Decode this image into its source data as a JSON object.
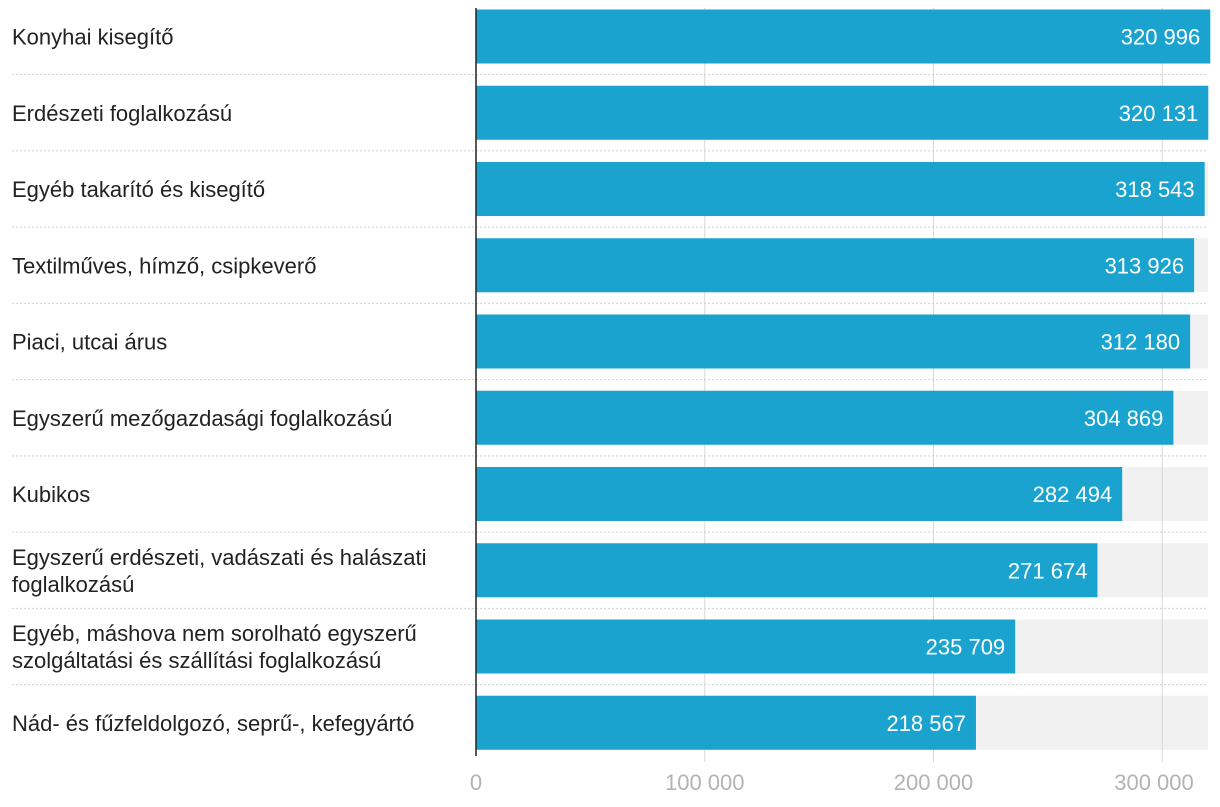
{
  "chart_data": {
    "type": "bar",
    "orientation": "horizontal",
    "title": "",
    "xlabel": "",
    "ylabel": "",
    "xlim": [
      0,
      320000
    ],
    "grid": true,
    "ticks": [
      {
        "value": 0,
        "label": "0"
      },
      {
        "value": 100000,
        "label": "100 000"
      },
      {
        "value": 200000,
        "label": "200 000"
      },
      {
        "value": 300000,
        "label": "300 000"
      }
    ],
    "categories": [
      [
        "Konyhai kisegítő"
      ],
      [
        "Erdészeti foglalkozású"
      ],
      [
        "Egyéb takarító és kisegítő"
      ],
      [
        "Textilműves, hímző, csipkeverő"
      ],
      [
        "Piaci, utcai árus"
      ],
      [
        "Egyszerű mezőgazdasági foglalkozású"
      ],
      [
        "Kubikos"
      ],
      [
        "Egyszerű erdészeti, vadászati és halászati",
        "foglalkozású"
      ],
      [
        "Egyéb, máshova nem sorolható egyszerű",
        "szolgáltatási és szállítási foglalkozású"
      ],
      [
        "Nád- és fűzfeldolgozó, seprű-, kefegyártó"
      ]
    ],
    "values": [
      320996,
      320131,
      318543,
      313926,
      312180,
      304869,
      282494,
      271674,
      235709,
      218567
    ],
    "value_labels": [
      "320 996",
      "320 131",
      "318 543",
      "313 926",
      "312 180",
      "304 869",
      "282 494",
      "271 674",
      "235 709",
      "218 567"
    ],
    "colors": {
      "bar": "#1ba3d0",
      "track": "#f1f1f1",
      "grid": "#d8d8d8",
      "axis": "#222222",
      "label_text": "#222222",
      "value_text": "#ffffff",
      "tick_text": "#b3b3b3",
      "separator": "#cfcfcf"
    }
  }
}
